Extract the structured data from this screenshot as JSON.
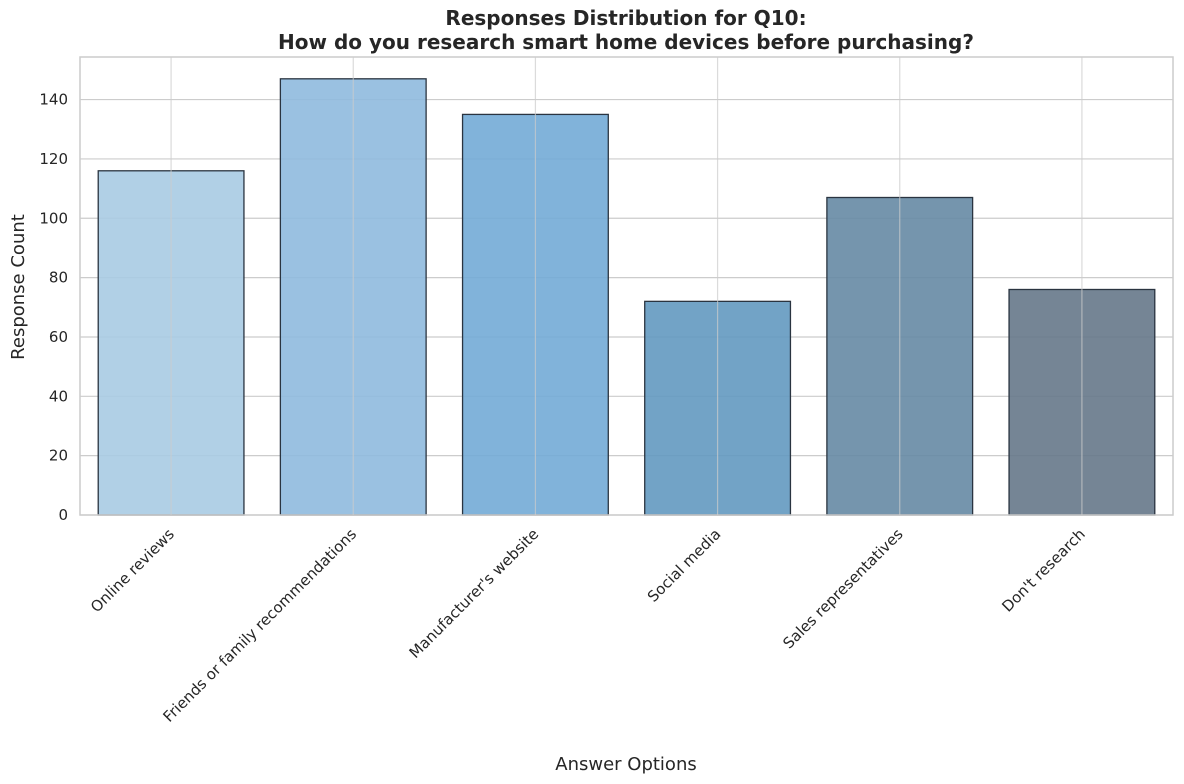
{
  "chart_data": {
    "type": "bar",
    "title_line1": "Responses Distribution for Q10:",
    "title_line2": "How do you research smart home devices before purchasing?",
    "xlabel": "Answer Options",
    "ylabel": "Response Count",
    "categories": [
      "Online reviews",
      "Friends or family recommendations",
      "Manufacturer's website",
      "Social media",
      "Sales representatives",
      "Don't research"
    ],
    "values": [
      116,
      147,
      135,
      72,
      107,
      76
    ],
    "ylim": [
      0,
      154.35
    ],
    "yticks": [
      0,
      20,
      40,
      60,
      80,
      100,
      120,
      140
    ],
    "grid": true,
    "colors": [
      "#a8cbe3",
      "#8fbade",
      "#73abd6",
      "#6399c0",
      "#668aa4",
      "#66788a"
    ],
    "bar_edge_color": "#2a3440",
    "bar_alpha": 0.9,
    "grid_color": "#cccccc",
    "spine_color": "#cccccc"
  }
}
